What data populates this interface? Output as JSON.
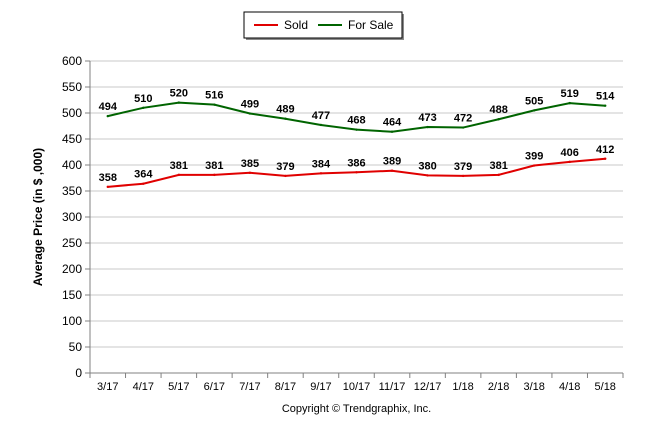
{
  "chart_data": {
    "type": "line",
    "categories": [
      "3/17",
      "4/17",
      "5/17",
      "6/17",
      "7/17",
      "8/17",
      "9/17",
      "10/17",
      "11/17",
      "12/17",
      "1/18",
      "2/18",
      "3/18",
      "4/18",
      "5/18"
    ],
    "series": [
      {
        "name": "Sold",
        "color": "#e00000",
        "values": [
          358,
          364,
          381,
          381,
          385,
          379,
          384,
          386,
          389,
          380,
          379,
          381,
          399,
          406,
          412
        ]
      },
      {
        "name": "For Sale",
        "color": "#006400",
        "values": [
          494,
          510,
          520,
          516,
          499,
          489,
          477,
          468,
          464,
          473,
          472,
          488,
          505,
          519,
          514
        ]
      }
    ],
    "ylabel": "Average Price (in $ ,000)",
    "ylim": [
      0,
      600
    ],
    "yticks": [
      0,
      50,
      100,
      150,
      200,
      250,
      300,
      350,
      400,
      450,
      500,
      550,
      600
    ],
    "grid": true,
    "legend_position": "top-center"
  },
  "footer": {
    "copyright": "Copyright © Trendgraphix, Inc."
  }
}
